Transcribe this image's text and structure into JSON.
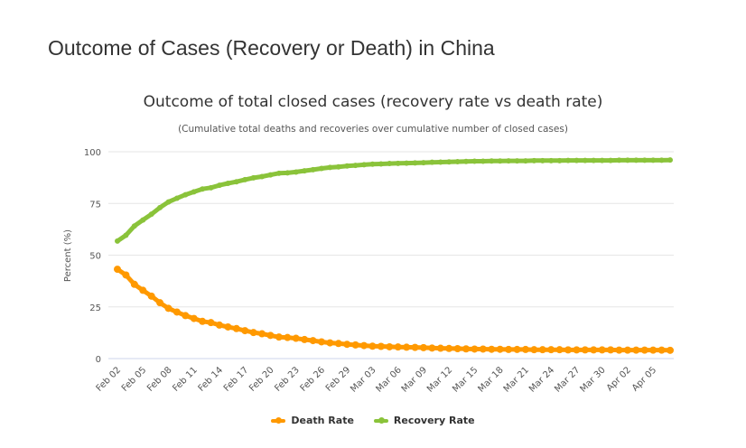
{
  "page": {
    "title": "Outcome of Cases (Recovery or Death) in China"
  },
  "chart_data": {
    "type": "line",
    "title": "Outcome of total closed cases (recovery rate vs death rate)",
    "subtitle": "(Cumulative total deaths and recoveries over cumulative number of closed cases)",
    "xlabel": "",
    "ylabel": "Percent (%)",
    "ylim": [
      0,
      100
    ],
    "yticks": [
      0,
      25,
      50,
      75,
      100
    ],
    "grid": true,
    "legend_position": "bottom",
    "x": [
      "Feb 02",
      "Feb 03",
      "Feb 04",
      "Feb 05",
      "Feb 06",
      "Feb 07",
      "Feb 08",
      "Feb 09",
      "Feb 10",
      "Feb 11",
      "Feb 12",
      "Feb 13",
      "Feb 14",
      "Feb 15",
      "Feb 16",
      "Feb 17",
      "Feb 18",
      "Feb 19",
      "Feb 20",
      "Feb 21",
      "Feb 22",
      "Feb 23",
      "Feb 24",
      "Feb 25",
      "Feb 26",
      "Feb 27",
      "Feb 28",
      "Feb 29",
      "Mar 01",
      "Mar 02",
      "Mar 03",
      "Mar 04",
      "Mar 05",
      "Mar 06",
      "Mar 07",
      "Mar 08",
      "Mar 09",
      "Mar 10",
      "Mar 11",
      "Mar 12",
      "Mar 13",
      "Mar 14",
      "Mar 15",
      "Mar 16",
      "Mar 17",
      "Mar 18",
      "Mar 19",
      "Mar 20",
      "Mar 21",
      "Mar 22",
      "Mar 23",
      "Mar 24",
      "Mar 25",
      "Mar 26",
      "Mar 27",
      "Mar 28",
      "Mar 29",
      "Mar 30",
      "Mar 31",
      "Apr 01",
      "Apr 02",
      "Apr 03",
      "Apr 04",
      "Apr 05",
      "Apr 06",
      "Apr 07"
    ],
    "xtick_labels": [
      "Feb 02",
      "Feb 05",
      "Feb 08",
      "Feb 11",
      "Feb 14",
      "Feb 17",
      "Feb 20",
      "Feb 23",
      "Feb 26",
      "Feb 29",
      "Mar 03",
      "Mar 06",
      "Mar 09",
      "Mar 12",
      "Mar 15",
      "Mar 18",
      "Mar 21",
      "Mar 24",
      "Mar 27",
      "Mar 30",
      "Apr 02",
      "Apr 05"
    ],
    "series": [
      {
        "name": "Death Rate",
        "color": "#ff9900",
        "values": [
          43.2,
          40.4,
          35.9,
          33.0,
          30.2,
          27.0,
          24.3,
          22.5,
          20.8,
          19.4,
          18.0,
          17.4,
          16.2,
          15.3,
          14.5,
          13.5,
          12.6,
          12.0,
          11.2,
          10.4,
          10.2,
          9.8,
          9.2,
          8.7,
          8.1,
          7.6,
          7.3,
          6.9,
          6.6,
          6.3,
          6.0,
          5.9,
          5.7,
          5.6,
          5.5,
          5.4,
          5.3,
          5.1,
          5.0,
          4.9,
          4.8,
          4.7,
          4.6,
          4.6,
          4.5,
          4.5,
          4.4,
          4.4,
          4.4,
          4.3,
          4.3,
          4.3,
          4.3,
          4.2,
          4.2,
          4.2,
          4.2,
          4.2,
          4.2,
          4.1,
          4.1,
          4.1,
          4.1,
          4.1,
          4.1,
          4.0
        ]
      },
      {
        "name": "Recovery Rate",
        "color": "#8ac33a",
        "values": [
          56.8,
          59.6,
          64.1,
          67.0,
          69.8,
          73.0,
          75.7,
          77.5,
          79.2,
          80.6,
          82.0,
          82.6,
          83.8,
          84.7,
          85.5,
          86.5,
          87.4,
          88.0,
          88.8,
          89.6,
          89.8,
          90.2,
          90.8,
          91.3,
          91.9,
          92.4,
          92.7,
          93.1,
          93.4,
          93.7,
          94.0,
          94.1,
          94.3,
          94.4,
          94.5,
          94.6,
          94.7,
          94.9,
          95.0,
          95.1,
          95.2,
          95.3,
          95.4,
          95.4,
          95.5,
          95.5,
          95.6,
          95.6,
          95.6,
          95.7,
          95.7,
          95.7,
          95.7,
          95.8,
          95.8,
          95.8,
          95.8,
          95.8,
          95.8,
          95.9,
          95.9,
          95.9,
          95.9,
          95.9,
          95.9,
          96.0
        ]
      }
    ]
  }
}
